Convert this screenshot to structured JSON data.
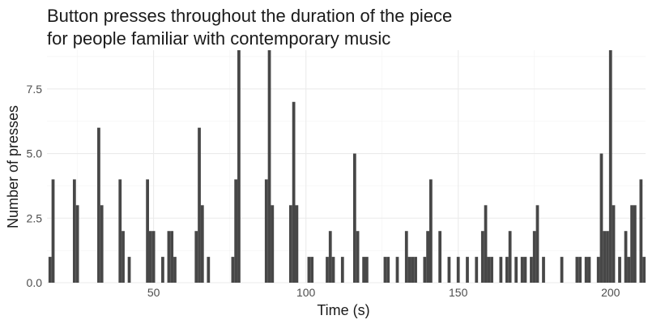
{
  "chart_data": {
    "type": "bar",
    "title_lines": [
      "Button presses throughout the duration of the piece",
      "for people familiar with contemporary music"
    ],
    "xlabel": "Time (s)",
    "ylabel": "Number of presses",
    "xlim": [
      15,
      211.5
    ],
    "ylim": [
      0,
      9
    ],
    "bar_width": 1,
    "x_ticks": [
      50,
      100,
      150,
      200
    ],
    "y_ticks": [
      0,
      2.5,
      5,
      7.5
    ],
    "y_tick_labels": [
      "0.0",
      "2.5",
      "5.0",
      "7.5"
    ],
    "grid": true,
    "bar_color": "#474747",
    "x": [
      16,
      17,
      24,
      25,
      32,
      33,
      39,
      40,
      42,
      48,
      49,
      50,
      53,
      55,
      56,
      57,
      64,
      65,
      66,
      68,
      76,
      77,
      78,
      87,
      88,
      89,
      95,
      96,
      97,
      101,
      102,
      107,
      108,
      109,
      112,
      116,
      117,
      119,
      120,
      126,
      127,
      130,
      133,
      134,
      135,
      136,
      139,
      140,
      141,
      144,
      147,
      150,
      153,
      156,
      158,
      159,
      160,
      161,
      164,
      166,
      167,
      169,
      171,
      172,
      174,
      175,
      176,
      178,
      184,
      189,
      190,
      192,
      193,
      196,
      197,
      198,
      199,
      200,
      201,
      203,
      205,
      206,
      207,
      208,
      210,
      211
    ],
    "values": [
      1,
      4,
      4,
      3,
      6,
      3,
      4,
      2,
      1,
      4,
      2,
      2,
      1,
      2,
      2,
      1,
      2,
      6,
      3,
      1,
      1,
      4,
      9,
      4,
      9,
      3,
      3,
      7,
      3,
      1,
      1,
      1,
      2,
      1,
      1,
      5,
      2,
      1,
      1,
      1,
      1,
      1,
      2,
      1,
      1,
      1,
      1,
      2,
      4,
      2,
      1,
      1,
      1,
      1,
      2,
      3,
      1,
      1,
      1,
      1,
      2,
      1,
      1,
      1,
      1,
      2,
      3,
      1,
      1,
      1,
      1,
      1,
      1,
      1,
      5,
      2,
      2,
      9,
      3,
      1,
      2,
      1,
      3,
      3,
      4,
      1
    ]
  }
}
